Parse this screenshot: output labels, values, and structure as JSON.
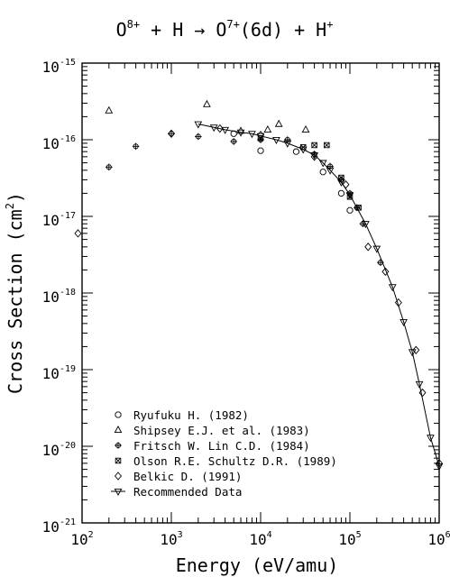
{
  "chart_data": {
    "type": "scatter",
    "title_main": "O",
    "title_sup1": "8+",
    "title_mid1": " + H → O",
    "title_sup2": "7+",
    "title_mid2": "(6d) + H",
    "title_sup3": "+",
    "xlabel": "Energy (eV/amu)",
    "ylabel_main": "Cross Section (cm",
    "ylabel_sup": "2",
    "ylabel_end": ")",
    "xscale": "log",
    "yscale": "log",
    "xlim": [
      100,
      1000000
    ],
    "ylim": [
      1e-21,
      1e-15
    ],
    "grid": false,
    "legend_position": "bottom-left",
    "x_ticks": [
      {
        "value": 100,
        "base": "10",
        "exp": "2"
      },
      {
        "value": 1000,
        "base": "10",
        "exp": "3"
      },
      {
        "value": 10000,
        "base": "10",
        "exp": "4"
      },
      {
        "value": 100000,
        "base": "10",
        "exp": "5"
      },
      {
        "value": 1000000,
        "base": "10",
        "exp": "6"
      }
    ],
    "y_ticks": [
      {
        "value": 1e-21,
        "base": "10",
        "exp": "-21"
      },
      {
        "value": 1e-20,
        "base": "10",
        "exp": "-20"
      },
      {
        "value": 1e-19,
        "base": "10",
        "exp": "-19"
      },
      {
        "value": 1e-18,
        "base": "10",
        "exp": "-18"
      },
      {
        "value": 1e-17,
        "base": "10",
        "exp": "-17"
      },
      {
        "value": 1e-16,
        "base": "10",
        "exp": "-16"
      },
      {
        "value": 1e-15,
        "base": "10",
        "exp": "-15"
      }
    ],
    "series": [
      {
        "name": "Ryufuku H. (1982)",
        "marker": "octagon",
        "points": [
          [
            5000,
            1.2e-16
          ],
          [
            10000,
            7.2e-17
          ],
          [
            25000,
            7e-17
          ],
          [
            50000,
            3.8e-17
          ],
          [
            80000,
            2e-17
          ],
          [
            100000,
            1.2e-17
          ]
        ]
      },
      {
        "name": "Shipsey E.J. et al. (1983)",
        "marker": "triangle-up",
        "points": [
          [
            200,
            2.4e-16
          ],
          [
            2500,
            2.9e-16
          ],
          [
            6000,
            1.3e-16
          ],
          [
            12000,
            1.35e-16
          ],
          [
            16000,
            1.6e-16
          ],
          [
            32000,
            1.35e-16
          ]
        ]
      },
      {
        "name": "Fritsch W. Lin C.D. (1984)",
        "marker": "plus-circle",
        "points": [
          [
            200,
            4.4e-17
          ],
          [
            400,
            8.2e-17
          ],
          [
            1000,
            1.2e-16
          ],
          [
            2000,
            1.1e-16
          ],
          [
            5000,
            9.5e-17
          ],
          [
            10000,
            1e-16
          ],
          [
            20000,
            1e-16
          ],
          [
            40000,
            6.5e-17
          ],
          [
            60000,
            4.5e-17
          ],
          [
            80000,
            3e-17
          ],
          [
            100000,
            2e-17
          ],
          [
            120000,
            1.3e-17
          ],
          [
            140000,
            8e-18
          ],
          [
            220000,
            2.5e-18
          ]
        ]
      },
      {
        "name": "Olson R.E. Schultz D.R. (1989)",
        "marker": "x-box",
        "points": [
          [
            10000,
            1.05e-16
          ],
          [
            30000,
            8e-17
          ],
          [
            40000,
            8.5e-17
          ],
          [
            55000,
            8.5e-17
          ],
          [
            80000,
            3.2e-17
          ],
          [
            100000,
            1.8e-17
          ],
          [
            125000,
            1.3e-17
          ]
        ]
      },
      {
        "name": "Belkic D. (1991)",
        "marker": "diamond",
        "points": [
          [
            90,
            6e-18
          ],
          [
            1000,
            1.2e-16
          ],
          [
            3500,
            1.4e-16
          ],
          [
            10000,
            1.15e-16
          ],
          [
            40000,
            6e-17
          ],
          [
            90000,
            2.6e-17
          ],
          [
            160000,
            4e-18
          ],
          [
            250000,
            1.9e-18
          ],
          [
            350000,
            7.5e-19
          ],
          [
            550000,
            1.8e-19
          ],
          [
            650000,
            5e-20
          ],
          [
            1000000,
            6e-21
          ]
        ]
      },
      {
        "name": "Recommended Data",
        "marker": "triangle-down",
        "line": true,
        "points": [
          [
            2000,
            1.6e-16
          ],
          [
            3000,
            1.45e-16
          ],
          [
            4000,
            1.35e-16
          ],
          [
            6000,
            1.25e-16
          ],
          [
            8000,
            1.2e-16
          ],
          [
            10000,
            1.12e-16
          ],
          [
            15000,
            1e-16
          ],
          [
            20000,
            9e-17
          ],
          [
            30000,
            7.5e-17
          ],
          [
            40000,
            6.3e-17
          ],
          [
            50000,
            5e-17
          ],
          [
            60000,
            4e-17
          ],
          [
            80000,
            2.8e-17
          ],
          [
            100000,
            1.9e-17
          ],
          [
            150000,
            8e-18
          ],
          [
            200000,
            3.8e-18
          ],
          [
            300000,
            1.2e-18
          ],
          [
            400000,
            4.2e-19
          ],
          [
            500000,
            1.7e-19
          ],
          [
            600000,
            6.5e-20
          ],
          [
            800000,
            1.3e-20
          ],
          [
            1000000,
            5.5e-21
          ]
        ]
      }
    ]
  }
}
